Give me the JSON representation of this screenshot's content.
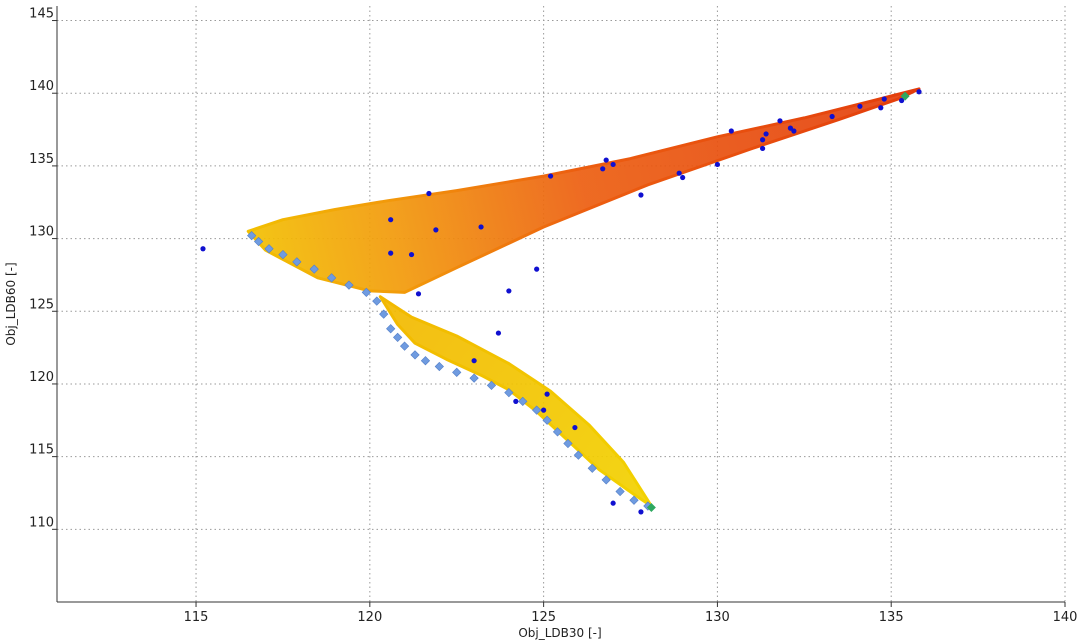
{
  "chart_data": {
    "type": "scatter",
    "xlabel": "Obj_LDB30 [-]",
    "ylabel": "Obj_LDB60 [-]",
    "xlim": [
      111,
      140
    ],
    "ylim": [
      105,
      146
    ],
    "xticks": [
      115,
      120,
      125,
      130,
      135,
      140
    ],
    "yticks": [
      110,
      115,
      120,
      125,
      130,
      135,
      140,
      145
    ],
    "grid": true,
    "colors": {
      "cloud_upper": "#e84a10",
      "cloud_mid": "#f29a0a",
      "cloud_lower": "#f2c400",
      "front": "#6f9be0",
      "samples": "#1010d0",
      "extremes": "#2ea860"
    },
    "upper_cloud_outline": {
      "x": [
        116.5,
        117.5,
        119.0,
        120.5,
        122.5,
        125.0,
        127.5,
        130.0,
        132.5,
        134.5,
        135.8,
        135.2,
        133.5,
        131.0,
        128.0,
        125.0,
        122.5,
        121.0,
        120.0,
        118.5,
        117.0,
        116.5
      ],
      "y": [
        130.5,
        131.3,
        132.0,
        132.6,
        133.3,
        134.3,
        135.5,
        137.0,
        138.3,
        139.5,
        140.3,
        139.6,
        138.2,
        136.2,
        133.7,
        130.8,
        128.0,
        126.3,
        126.4,
        127.3,
        129.2,
        130.5
      ]
    },
    "lower_cloud_outline": {
      "x": [
        120.3,
        121.2,
        122.5,
        124.0,
        125.2,
        126.3,
        127.3,
        128.1,
        127.6,
        126.6,
        125.7,
        124.8,
        124.0,
        123.2,
        122.2,
        121.3,
        120.8,
        120.3
      ],
      "y": [
        126.0,
        124.6,
        123.3,
        121.4,
        119.5,
        117.2,
        114.6,
        111.6,
        112.4,
        114.1,
        116.1,
        118.1,
        119.6,
        120.6,
        121.7,
        122.8,
        124.1,
        126.0
      ]
    },
    "front_points": {
      "x": [
        116.6,
        116.8,
        117.1,
        117.5,
        117.9,
        118.4,
        118.9,
        119.4,
        119.9,
        120.2,
        120.4,
        120.6,
        120.8,
        121.0,
        121.3,
        121.6,
        122.0,
        122.5,
        123.0,
        123.5,
        124.0,
        124.4,
        124.8,
        125.1,
        125.4,
        125.7,
        126.0,
        126.4,
        126.8,
        127.2,
        127.6,
        128.0
      ],
      "y": [
        130.2,
        129.8,
        129.3,
        128.9,
        128.4,
        127.9,
        127.3,
        126.8,
        126.3,
        125.7,
        124.8,
        123.8,
        123.2,
        122.6,
        122.0,
        121.6,
        121.2,
        120.8,
        120.4,
        119.9,
        119.4,
        118.8,
        118.2,
        117.5,
        116.7,
        115.9,
        115.1,
        114.2,
        113.4,
        112.6,
        112.0,
        111.6
      ]
    },
    "sample_points": {
      "x": [
        115.2,
        120.6,
        120.6,
        121.2,
        121.4,
        121.7,
        121.9,
        123.2,
        123.7,
        123.0,
        124.0,
        124.8,
        124.2,
        125.0,
        125.1,
        125.2,
        125.9,
        126.7,
        126.8,
        127.0,
        127.8,
        127.0,
        127.8,
        128.9,
        129.0,
        130.0,
        130.4,
        131.3,
        131.3,
        131.4,
        131.8,
        132.1,
        132.2,
        133.3,
        134.1,
        134.7,
        134.8,
        135.3,
        135.8
      ],
      "y": [
        129.3,
        131.3,
        129.0,
        128.9,
        126.2,
        133.1,
        130.6,
        130.8,
        123.5,
        121.6,
        126.4,
        127.9,
        118.8,
        118.2,
        119.3,
        134.3,
        117.0,
        134.8,
        135.4,
        135.1,
        133.0,
        111.8,
        111.2,
        134.5,
        134.2,
        135.1,
        137.4,
        136.2,
        136.8,
        137.2,
        138.1,
        137.6,
        137.4,
        138.4,
        139.1,
        139.0,
        139.6,
        139.5,
        140.1
      ]
    },
    "extreme_points": {
      "x": [
        128.1,
        135.4
      ],
      "y": [
        111.5,
        139.8
      ]
    }
  }
}
